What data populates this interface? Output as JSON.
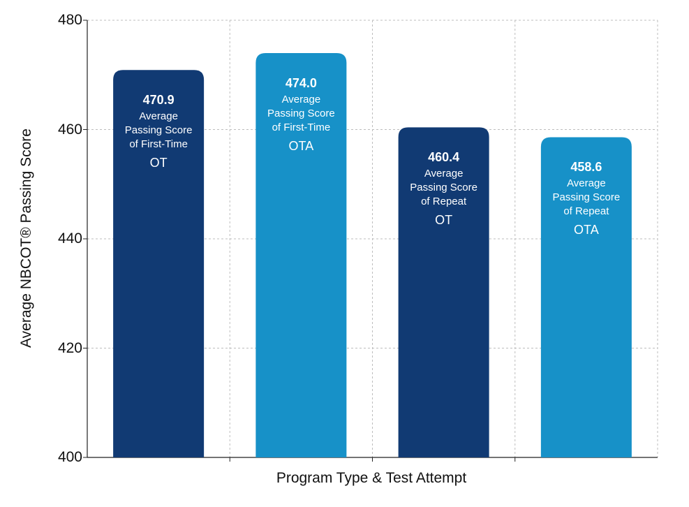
{
  "chart_data": {
    "type": "bar",
    "xlabel": "Program Type & Test Attempt",
    "ylabel": "Average NBCOT® Passing Score",
    "ylim": [
      400,
      480
    ],
    "yticks": [
      400,
      420,
      440,
      460,
      480
    ],
    "grid": true,
    "categories": [
      {
        "value_label": "470.9",
        "desc_lines": [
          "Average",
          "Passing Score",
          "of First-Time"
        ],
        "program": "OT",
        "color": "#113a73"
      },
      {
        "value_label": "474.0",
        "desc_lines": [
          "Average",
          "Passing Score",
          "of First-Time"
        ],
        "program": "OTA",
        "color": "#1791c8"
      },
      {
        "value_label": "460.4",
        "desc_lines": [
          "Average",
          "Passing Score",
          "of Repeat"
        ],
        "program": "OT",
        "color": "#113a73"
      },
      {
        "value_label": "458.6",
        "desc_lines": [
          "Average",
          "Passing Score",
          "of Repeat"
        ],
        "program": "OTA",
        "color": "#1791c8"
      }
    ],
    "values": [
      470.9,
      474.0,
      460.4,
      458.6
    ]
  }
}
